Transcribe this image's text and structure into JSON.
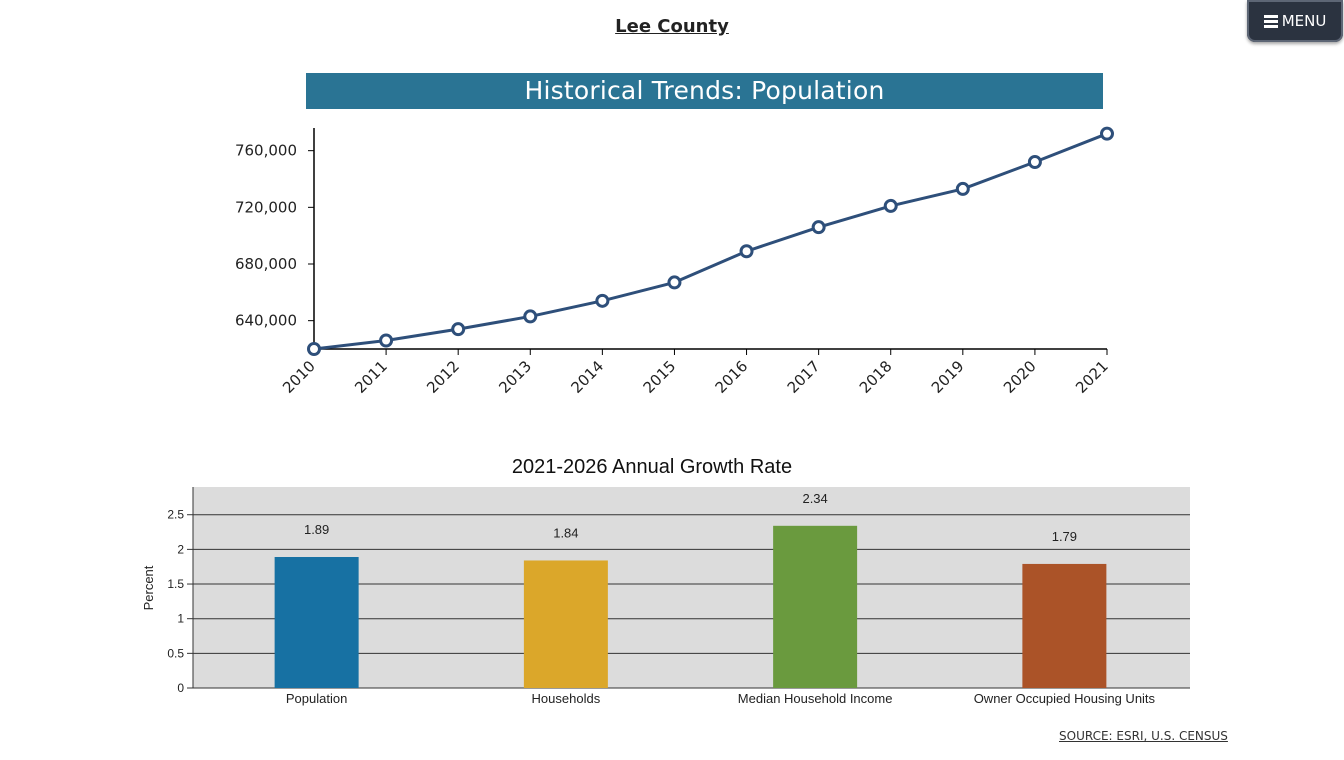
{
  "page": {
    "title": "Lee County",
    "menu_label": "MENU",
    "source_label": "SOURCE: ESRI, U.S. CENSUS"
  },
  "colors": {
    "banner": "#2a7494",
    "line": "#2e4f7a",
    "bar_panel": "#dcdcdc",
    "bars": [
      "#1771a3",
      "#dba72a",
      "#6a9a3e",
      "#ab5328"
    ]
  },
  "icons": {
    "menu": "hamburger-icon"
  },
  "chart_data": [
    {
      "type": "line",
      "title": "Historical Trends: Population",
      "categories": [
        "2010",
        "2011",
        "2012",
        "2013",
        "2014",
        "2015",
        "2016",
        "2017",
        "2018",
        "2019",
        "2020",
        "2021"
      ],
      "series": [
        {
          "values": [
            620000,
            626000,
            634000,
            643000,
            654000,
            667000,
            689000,
            706000,
            721000,
            733000,
            752000,
            772000
          ]
        }
      ],
      "yticks": [
        640000,
        680000,
        720000,
        760000
      ],
      "ytick_labels": [
        "640,000",
        "680,000",
        "720,000",
        "760,000"
      ],
      "ylim": [
        620000,
        776000
      ],
      "grid": false
    },
    {
      "type": "bar",
      "title": "2021-2026 Annual Growth Rate",
      "categories": [
        "Population",
        "Households",
        "Median Household Income",
        "Owner Occupied Housing Units"
      ],
      "values": [
        1.89,
        1.84,
        2.34,
        1.79
      ],
      "value_labels": [
        "1.89",
        "1.84",
        "2.34",
        "1.79"
      ],
      "ylabel": "Percent",
      "yticks": [
        0,
        0.5,
        1,
        1.5,
        2,
        2.5
      ],
      "ytick_labels": [
        "0",
        "0.5",
        "1",
        "1.5",
        "2",
        "2.5"
      ],
      "ylim": [
        0,
        2.9
      ],
      "grid": true
    }
  ]
}
